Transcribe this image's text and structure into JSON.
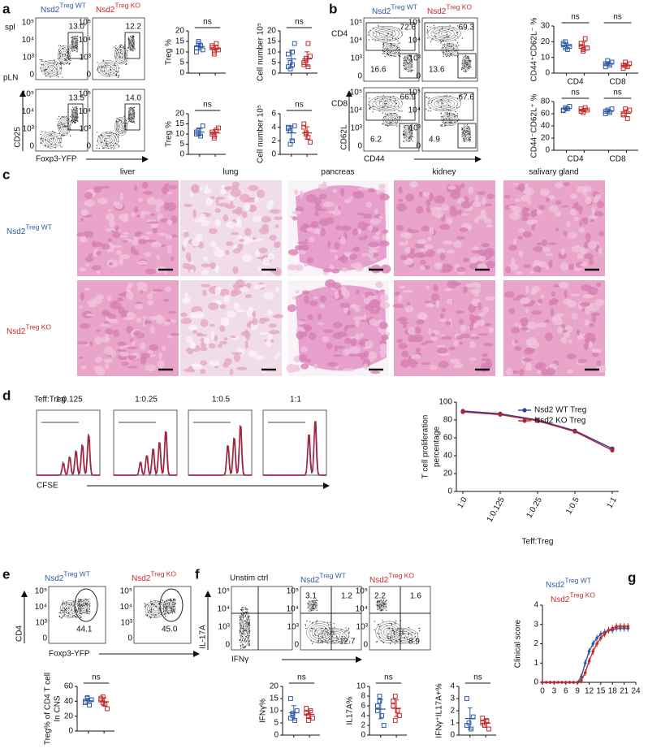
{
  "groups": {
    "wt": {
      "name": "Nsd2",
      "sup": "Treg WT",
      "color": "#2f5aa6"
    },
    "ko": {
      "name": "Nsd2",
      "sup": "Treg KO",
      "color": "#c52a2a"
    }
  },
  "a": {
    "label": "a",
    "rows": [
      "spl",
      "pLN"
    ],
    "ylabel": "CD25",
    "xlabel": "Foxp3-YFP",
    "gates": [
      [
        "13.0",
        "12.2"
      ],
      [
        "13.5",
        "14.0"
      ]
    ],
    "plots": [
      {
        "ylabel": "Treg %",
        "ylim": [
          0,
          20
        ],
        "yticks": [
          0,
          5,
          10,
          15,
          20
        ],
        "ns": [
          "ns"
        ],
        "sets": [
          [
            [
              12,
              14,
              13,
              11,
              10,
              15,
              13
            ],
            [
              12,
              10,
              14,
              11,
              13,
              9,
              12
            ]
          ]
        ]
      },
      {
        "ylabel": "Cell number 10⁵",
        "ylim": [
          0,
          20
        ],
        "yticks": [
          0,
          5,
          10,
          15,
          20
        ],
        "ns": [
          "ns"
        ],
        "sets": [
          [
            [
              3,
              5,
              10,
              14,
              9,
              2,
              4
            ],
            [
              4,
              6,
              14,
              8,
              5,
              7,
              3
            ]
          ]
        ]
      },
      {
        "ylabel": "Treg %",
        "ylim": [
          0,
          20
        ],
        "yticks": [
          0,
          5,
          10,
          15,
          20
        ],
        "ns": [
          "ns"
        ],
        "sets": [
          [
            [
              10,
              12,
              9,
              14,
              11,
              10
            ],
            [
              11,
              9,
              12,
              13,
              10,
              8
            ]
          ]
        ]
      },
      {
        "ylabel": "Cell number 10⁵",
        "ylim": [
          0,
          6
        ],
        "yticks": [
          0,
          2,
          4,
          6
        ],
        "ns": [
          "ns"
        ],
        "sets": [
          [
            [
              4,
              3.5,
              2,
              4.2,
              3.8,
              1.5
            ],
            [
              4.5,
              3,
              2.5,
              1.8,
              4,
              3.2
            ]
          ]
        ]
      }
    ]
  },
  "b": {
    "label": "b",
    "rows": [
      "CD4",
      "CD8"
    ],
    "ylabel": "CD62L",
    "xlabel": "CD44",
    "gates": [
      [
        [
          "72.6",
          "16.6"
        ],
        [
          "69.3",
          "13.6"
        ]
      ],
      [
        [
          "66.9",
          "6.2"
        ],
        [
          "67.6",
          "4.9"
        ]
      ]
    ],
    "plots": [
      {
        "ylabel": "CD44⁺CD62L⁻ %",
        "ylim": [
          0,
          30
        ],
        "yticks": [
          0,
          10,
          20,
          30
        ],
        "ns": [
          "ns",
          "ns"
        ],
        "categories": [
          "CD4",
          "CD8"
        ],
        "sets": [
          [
            [
              18,
              20,
              15,
              17,
              19,
              16
            ],
            [
              17,
              14,
              22,
              16,
              19,
              15
            ]
          ],
          [
            [
              6,
              8,
              5,
              7,
              4,
              6
            ],
            [
              5,
              7,
              4,
              6,
              3,
              5
            ]
          ]
        ]
      },
      {
        "ylabel": "CD44⁻CD62L⁺ %",
        "ylim": [
          0,
          80
        ],
        "yticks": [
          0,
          20,
          40,
          60,
          80
        ],
        "ns": [
          "ns",
          "ns"
        ],
        "categories": [
          "CD4",
          "CD8"
        ],
        "sets": [
          [
            [
              65,
              70,
              68,
              72,
              66
            ],
            [
              68,
              62,
              70,
              66,
              64
            ]
          ],
          [
            [
              64,
              66,
              62,
              68,
              60
            ],
            [
              60,
              68,
              52,
              66,
              58
            ]
          ]
        ]
      }
    ]
  },
  "c": {
    "label": "c",
    "tissues": [
      "liver",
      "lung",
      "pancreas",
      "kidney",
      "salivary gland"
    ]
  },
  "d": {
    "label": "d",
    "ratio_label": "Teff:Treg",
    "ratios": [
      "1:0.125",
      "1:0.25",
      "1:0.5",
      "1:1"
    ],
    "xlabel": "CFSE",
    "chart": {
      "type": "line",
      "ylabel": [
        "T cell proliferation",
        "percentage"
      ],
      "xlabel": "Teff:Treg",
      "categories": [
        "1:0",
        "1:0.125",
        "1:0.25",
        "1:0.5",
        "1:1"
      ],
      "ylim": [
        0,
        100
      ],
      "yticks": [
        0,
        20,
        40,
        60,
        80,
        100
      ],
      "series": [
        {
          "name": "Nsd2 WT Treg",
          "color": "#2f3fa6",
          "values": [
            90,
            87,
            80,
            68,
            48
          ]
        },
        {
          "name": "Nsd2 KO Treg",
          "color": "#b8232b",
          "values": [
            89,
            86,
            79,
            67,
            46
          ]
        }
      ]
    }
  },
  "e": {
    "label": "e",
    "ylabel": "CD4",
    "xlabel": "Foxp3-YFP",
    "gates": [
      "44.1",
      "45.0"
    ],
    "plot": {
      "ylabel": [
        "Treg% of CD4 T cell",
        "In CNS"
      ],
      "ylim": [
        0,
        60
      ],
      "yticks": [
        0,
        20,
        40,
        60
      ],
      "ns": [
        "ns"
      ],
      "sets": [
        [
          [
            40,
            45,
            35,
            42,
            38,
            44
          ],
          [
            42,
            46,
            36,
            30,
            44,
            38
          ]
        ]
      ]
    }
  },
  "f": {
    "label": "f",
    "unstim": "Unstim ctrl",
    "ylabel": "IL-17A",
    "xlabel": "IFNγ",
    "gates": [
      [
        "3.1",
        "1.2",
        "12.7"
      ],
      [
        "2.2",
        "1.6",
        "8.9"
      ]
    ],
    "plots": [
      {
        "ylabel": "IFNγ%",
        "ylim": [
          0,
          20
        ],
        "yticks": [
          0,
          5,
          10,
          15,
          20
        ],
        "ns": [
          "ns"
        ],
        "sets": [
          [
            [
              15,
              8,
              6,
              10,
              7,
              9
            ],
            [
              9,
              6,
              10,
              7,
              11,
              8
            ]
          ]
        ]
      },
      {
        "ylabel": "IL17A%",
        "ylim": [
          0,
          10
        ],
        "yticks": [
          0,
          2,
          4,
          6,
          8,
          10
        ],
        "ns": [
          "ns"
        ],
        "sets": [
          [
            [
              5,
              7,
              4,
              2,
              6,
              8
            ],
            [
              6,
              8,
              5,
              4,
              7,
              3
            ]
          ]
        ]
      },
      {
        "ylabel": "IFNγ⁺IL17A+%",
        "ylim": [
          0,
          4
        ],
        "yticks": [
          0,
          1,
          2,
          3,
          4
        ],
        "ns": [
          "ns"
        ],
        "sets": [
          [
            [
              3,
              1,
              0.5,
              1.5,
              0.8
            ],
            [
              1,
              0.8,
              1.2,
              0.5,
              1.4
            ]
          ]
        ]
      }
    ]
  },
  "g": {
    "label": "g",
    "chart": {
      "type": "line",
      "ylabel": "Clinical score",
      "x": [
        0,
        1,
        2,
        3,
        4,
        5,
        6,
        7,
        8,
        9,
        10,
        11,
        12,
        13,
        14,
        15,
        16,
        17,
        18,
        19,
        20,
        21,
        22
      ],
      "xlim": [
        0,
        24
      ],
      "xticks": [
        0,
        3,
        6,
        9,
        12,
        15,
        18,
        21,
        24
      ],
      "ylim": [
        0,
        4
      ],
      "yticks": [
        0,
        1,
        2,
        3,
        4
      ],
      "series": [
        {
          "color": "#2f5aa6",
          "values": [
            0,
            0,
            0,
            0,
            0,
            0,
            0,
            0,
            0,
            0,
            0.3,
            1.0,
            1.6,
            2.0,
            2.3,
            2.5,
            2.6,
            2.7,
            2.7,
            2.8,
            2.8,
            2.8,
            2.8
          ]
        },
        {
          "color": "#c52a2a",
          "values": [
            0,
            0,
            0,
            0,
            0,
            0,
            0,
            0,
            0,
            0,
            0.1,
            0.5,
            1.1,
            1.6,
            2.0,
            2.3,
            2.5,
            2.7,
            2.8,
            2.9,
            2.9,
            2.9,
            2.9
          ]
        }
      ]
    }
  }
}
